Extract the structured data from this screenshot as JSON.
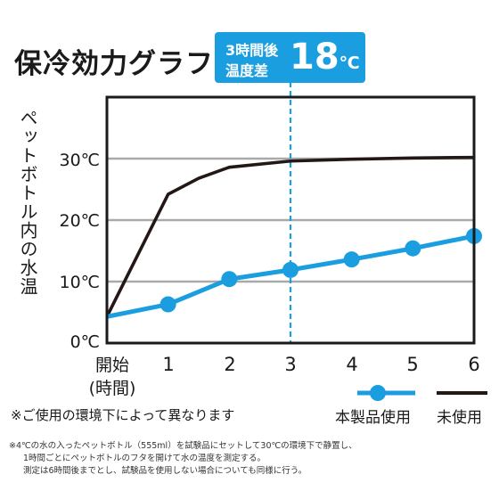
{
  "title": "保冷効力グラフ",
  "callout": {
    "line1": "3時間後",
    "line2": "温度差",
    "value": "18",
    "unit": "℃"
  },
  "note": "※ご使用の環境下によって異なります",
  "footnotes": [
    "※4℃の水の入ったペットボトル（555ml）を試験品にセットして30℃の環境下で静置し、",
    "1時間ごとにペットボトルのフタを開けて水の温度を測定する。",
    "測定は6時間後までとし、試験品を使用しない場合についても同様に行う。"
  ],
  "colors": {
    "product": "#1b9ee0",
    "unused": "#231815",
    "grid": "#a9a9a9",
    "highlight": "#1b9ee0"
  },
  "chart_data": {
    "type": "line",
    "ylabel": "ペットボトル内の水温",
    "xlabel": "",
    "categories": [
      "開始\n(時間)",
      "1",
      "2",
      "3",
      "4",
      "5",
      "6"
    ],
    "x": [
      0,
      1,
      2,
      3,
      4,
      5,
      6
    ],
    "xlim": [
      0,
      6
    ],
    "ylim": [
      0,
      40
    ],
    "yticks": [
      0,
      10,
      20,
      30
    ],
    "ytick_labels": [
      "0℃",
      "10℃",
      "20℃",
      "30℃"
    ],
    "grid": true,
    "highlight_x": 3,
    "legend_position": "bottom-right",
    "series": [
      {
        "name": "本製品使用",
        "marker": "circle",
        "color": "#1b9ee0",
        "values": [
          4.3,
          6.3,
          10.4,
          11.9,
          13.6,
          15.4,
          17.4
        ]
      },
      {
        "name": "未使用",
        "marker": "none",
        "color": "#231815",
        "x": [
          0,
          1,
          1.5,
          2,
          3,
          4,
          5,
          6
        ],
        "values": [
          4.3,
          24.2,
          26.8,
          28.6,
          29.6,
          29.9,
          30.1,
          30.2
        ]
      }
    ]
  }
}
